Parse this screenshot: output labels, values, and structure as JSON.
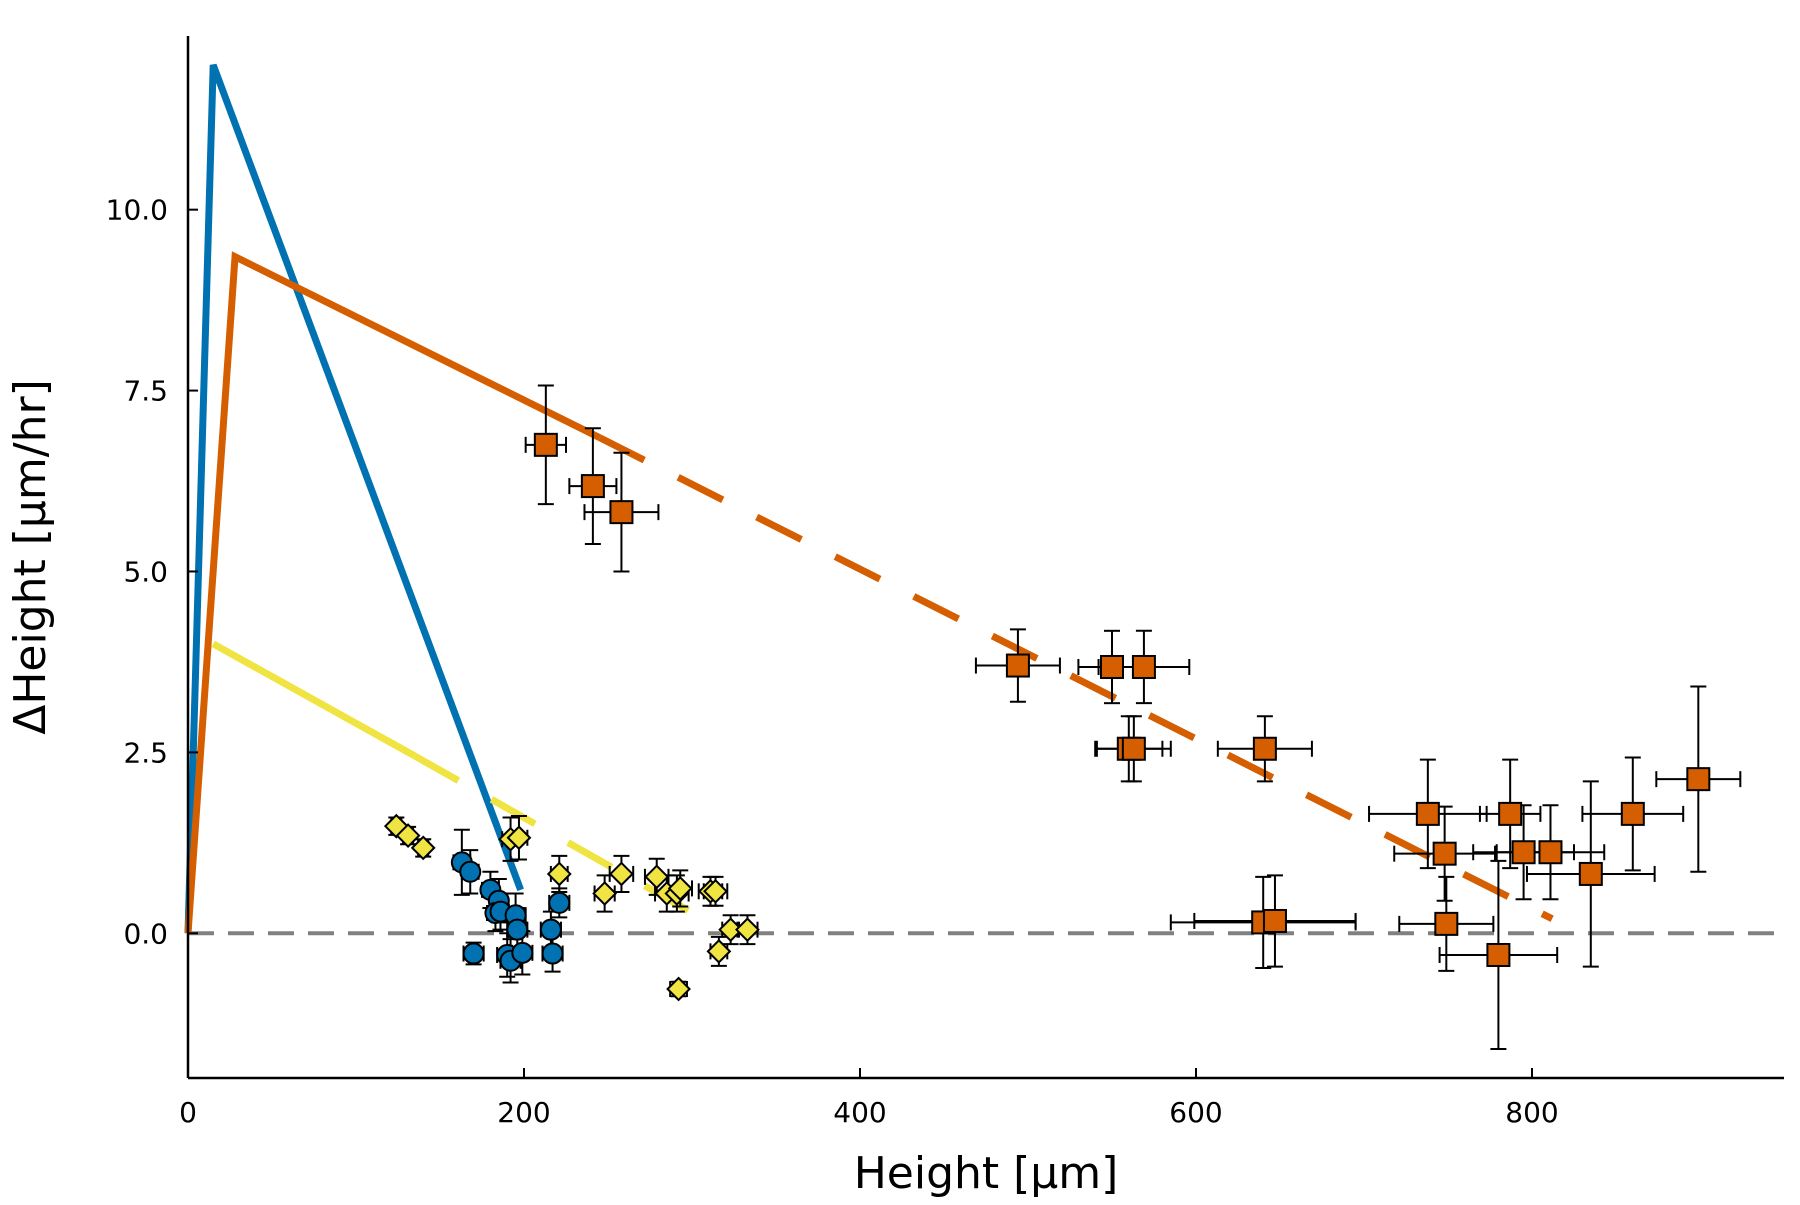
{
  "chart_data": {
    "type": "scatter",
    "title": "",
    "xlabel": "Height [µm]",
    "ylabel": "ΔHeight [µm/hr]",
    "xlim": [
      0,
      950
    ],
    "ylim": [
      -2.0,
      12.4
    ],
    "xticks": [
      0,
      200,
      400,
      600,
      800
    ],
    "yticks": [
      0.0,
      2.5,
      5.0,
      7.5,
      10.0
    ],
    "xtick_labels": [
      "0",
      "200",
      "400",
      "600",
      "800"
    ],
    "ytick_labels": [
      "0.0",
      "2.5",
      "5.0",
      "7.5",
      "10.0"
    ],
    "grid": false,
    "legend": "none",
    "reference_line": {
      "y": 0.0,
      "style": "dashed",
      "color": "#808080"
    },
    "lines": [
      {
        "color": "#0072b2",
        "segments": [
          {
            "style": "solid",
            "points": [
              [
                0,
                0.0
              ],
              [
                15,
                12.0
              ],
              [
                198,
                0.6
              ]
            ]
          }
        ]
      },
      {
        "color": "#d55e00",
        "segments": [
          {
            "style": "solid",
            "points": [
              [
                0,
                0.0
              ],
              [
                28,
                9.35
              ],
              [
                245,
                6.85
              ]
            ]
          },
          {
            "style": "dashed",
            "points": [
              [
                245,
                6.85
              ],
              [
                812,
                0.2
              ]
            ]
          }
        ]
      },
      {
        "color": "#f0e442",
        "segments": [
          {
            "style": "solid",
            "points": [
              [
                15,
                4.0
              ],
              [
                135,
                2.45
              ]
            ]
          },
          {
            "style": "dashed",
            "points": [
              [
                135,
                2.45
              ],
              [
                318,
                0.05
              ]
            ]
          }
        ]
      }
    ],
    "series": [
      {
        "marker": "circle",
        "color": "#0072b2",
        "points": [
          {
            "x": 163,
            "y": 0.98,
            "xerr": 5,
            "yerr": 0.45
          },
          {
            "x": 168,
            "y": 0.85,
            "xerr": 5,
            "yerr": 0.3
          },
          {
            "x": 180,
            "y": 0.6,
            "xerr": 5,
            "yerr": 0.25
          },
          {
            "x": 185,
            "y": 0.45,
            "xerr": 5,
            "yerr": 0.3
          },
          {
            "x": 183,
            "y": 0.28,
            "xerr": 5,
            "yerr": 0.25
          },
          {
            "x": 186,
            "y": 0.3,
            "xerr": 5,
            "yerr": 0.25
          },
          {
            "x": 195,
            "y": 0.25,
            "xerr": 6,
            "yerr": 0.3
          },
          {
            "x": 196,
            "y": 0.05,
            "xerr": 6,
            "yerr": 0.3
          },
          {
            "x": 170,
            "y": -0.28,
            "xerr": 6,
            "yerr": 0.15
          },
          {
            "x": 190,
            "y": -0.3,
            "xerr": 6,
            "yerr": 0.3
          },
          {
            "x": 192,
            "y": -0.38,
            "xerr": 6,
            "yerr": 0.3
          },
          {
            "x": 199,
            "y": -0.27,
            "xerr": 6,
            "yerr": 0.3
          },
          {
            "x": 216,
            "y": 0.05,
            "xerr": 6,
            "yerr": 0.25
          },
          {
            "x": 217,
            "y": -0.28,
            "xerr": 6,
            "yerr": 0.25
          },
          {
            "x": 221,
            "y": 0.42,
            "xerr": 6,
            "yerr": 0.2
          }
        ]
      },
      {
        "marker": "square",
        "color": "#d55e00",
        "points": [
          {
            "x": 213,
            "y": 6.75,
            "xerr": 12,
            "yerr": 0.82
          },
          {
            "x": 241,
            "y": 6.18,
            "xerr": 14,
            "yerr": 0.8
          },
          {
            "x": 258,
            "y": 5.82,
            "xerr": 22,
            "yerr": 0.82
          },
          {
            "x": 494,
            "y": 3.7,
            "xerr": 25,
            "yerr": 0.5
          },
          {
            "x": 550,
            "y": 3.68,
            "xerr": 20,
            "yerr": 0.5
          },
          {
            "x": 569,
            "y": 3.68,
            "xerr": 27,
            "yerr": 0.5
          },
          {
            "x": 560,
            "y": 2.55,
            "xerr": 20,
            "yerr": 0.45
          },
          {
            "x": 563,
            "y": 2.55,
            "xerr": 22,
            "yerr": 0.45
          },
          {
            "x": 641,
            "y": 2.55,
            "xerr": 28,
            "yerr": 0.45
          },
          {
            "x": 640,
            "y": 0.15,
            "xerr": 55,
            "yerr": 0.63
          },
          {
            "x": 647,
            "y": 0.17,
            "xerr": 48,
            "yerr": 0.63
          },
          {
            "x": 738,
            "y": 1.65,
            "xerr": 35,
            "yerr": 0.75
          },
          {
            "x": 748,
            "y": 1.1,
            "xerr": 30,
            "yerr": 0.65
          },
          {
            "x": 749,
            "y": 0.13,
            "xerr": 28,
            "yerr": 0.65
          },
          {
            "x": 787,
            "y": 1.65,
            "xerr": 18,
            "yerr": 0.75
          },
          {
            "x": 795,
            "y": 1.12,
            "xerr": 30,
            "yerr": 0.65
          },
          {
            "x": 811,
            "y": 1.12,
            "xerr": 32,
            "yerr": 0.65
          },
          {
            "x": 780,
            "y": -0.3,
            "xerr": 35,
            "yerr": 1.3
          },
          {
            "x": 835,
            "y": 0.82,
            "xerr": 38,
            "yerr": 1.28
          },
          {
            "x": 860,
            "y": 1.65,
            "xerr": 30,
            "yerr": 0.78
          },
          {
            "x": 899,
            "y": 2.13,
            "xerr": 25,
            "yerr": 1.28
          }
        ]
      },
      {
        "marker": "diamond",
        "color": "#f0e442",
        "points": [
          {
            "x": 124,
            "y": 1.48,
            "xerr": 3,
            "yerr": 0.12
          },
          {
            "x": 131,
            "y": 1.35,
            "xerr": 3,
            "yerr": 0.12
          },
          {
            "x": 140,
            "y": 1.18,
            "xerr": 3,
            "yerr": 0.12
          },
          {
            "x": 192,
            "y": 1.3,
            "xerr": 5,
            "yerr": 0.3
          },
          {
            "x": 197,
            "y": 1.32,
            "xerr": 5,
            "yerr": 0.3
          },
          {
            "x": 221,
            "y": 0.82,
            "xerr": 5,
            "yerr": 0.25
          },
          {
            "x": 248,
            "y": 0.55,
            "xerr": 6,
            "yerr": 0.25
          },
          {
            "x": 258,
            "y": 0.82,
            "xerr": 7,
            "yerr": 0.25
          },
          {
            "x": 279,
            "y": 0.78,
            "xerr": 7,
            "yerr": 0.25
          },
          {
            "x": 285,
            "y": 0.55,
            "xerr": 7,
            "yerr": 0.25
          },
          {
            "x": 291,
            "y": 0.55,
            "xerr": 7,
            "yerr": 0.25
          },
          {
            "x": 293,
            "y": 0.62,
            "xerr": 7,
            "yerr": 0.25
          },
          {
            "x": 311,
            "y": 0.58,
            "xerr": 7,
            "yerr": 0.2
          },
          {
            "x": 314,
            "y": 0.58,
            "xerr": 7,
            "yerr": 0.2
          },
          {
            "x": 323,
            "y": 0.05,
            "xerr": 5,
            "yerr": 0.2
          },
          {
            "x": 333,
            "y": 0.05,
            "xerr": 6,
            "yerr": 0.2
          },
          {
            "x": 316,
            "y": -0.25,
            "xerr": 5,
            "yerr": 0.2
          },
          {
            "x": 292,
            "y": -0.77,
            "xerr": 5,
            "yerr": 0.1
          }
        ]
      }
    ]
  }
}
